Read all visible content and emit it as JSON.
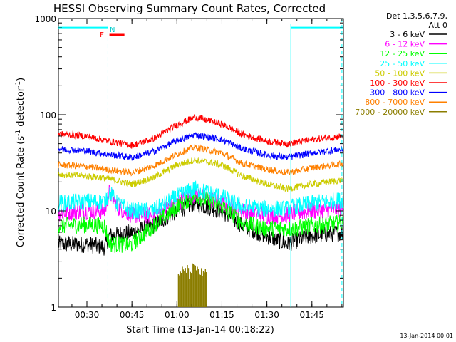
{
  "chart_data": {
    "type": "line",
    "title": "HESSI Observing Summary Count Rates, Corrected",
    "xlabel": "Start Time (13-Jan-14 00:18:22)",
    "ylabel": "Corrected Count Rate (s⁻¹ detector⁻¹)",
    "ylabel_main": "Corrected Count Rate (s",
    "ylabel_sup1": "-1",
    "ylabel_mid": " detector",
    "ylabel_sup2": "-1",
    "ylabel_end": ")",
    "y_scale": "log",
    "ylim": [
      1,
      1000
    ],
    "xlim": [
      "00:20:30",
      "01:55:30"
    ],
    "x_ticks": [
      "00:30",
      "00:45",
      "01:00",
      "01:15",
      "01:30",
      "01:45"
    ],
    "y_ticks": [
      "1",
      "10",
      "100",
      "1000"
    ],
    "legend_header": [
      "Det 1,3,5,6,7,9,",
      "Att 0"
    ],
    "legend_position": "right",
    "footer_date": "13-Jan-2014 00:01",
    "night_bar": {
      "segments": [
        [
          "00:20:30",
          "00:37:00"
        ],
        [
          "01:38:00",
          "01:55:30"
        ]
      ],
      "color": "#00ffff",
      "level": 800
    },
    "saa_dashed_lines": [
      "00:37:00",
      "01:55:00"
    ],
    "saa_solid_lines": [
      "01:38:00"
    ],
    "flag_labels": {
      "f": "F",
      "n": "N",
      "f_time": "00:35:00",
      "n_time": "00:38:00",
      "n_bar": [
        "00:37:30",
        "00:42:30"
      ]
    },
    "series": [
      {
        "name": "3 - 6 keV",
        "color": "#000000",
        "x": [
          "00:20:30",
          "00:30",
          "00:36",
          "00:37:30",
          "00:45",
          "00:52",
          "01:00",
          "01:06",
          "01:15",
          "01:22",
          "01:30",
          "01:37",
          "01:38:30",
          "01:45",
          "01:55:30"
        ],
        "values": [
          4.5,
          4.5,
          4.2,
          5.5,
          6,
          7,
          10,
          12,
          10,
          7,
          5.5,
          4.5,
          4.8,
          5.5,
          6
        ]
      },
      {
        "name": "6 - 12 keV",
        "color": "#ff00ff",
        "x": [
          "00:20:30",
          "00:30",
          "00:36",
          "00:37:30",
          "00:40",
          "00:45",
          "00:52",
          "01:00",
          "01:06",
          "01:15",
          "01:22",
          "01:30",
          "01:37",
          "01:38:30",
          "01:45",
          "01:55:30"
        ],
        "values": [
          9.5,
          10,
          10,
          16,
          11,
          9,
          9,
          12,
          15,
          12,
          10,
          9,
          9,
          9.5,
          10,
          10.5
        ]
      },
      {
        "name": "12 - 25 keV",
        "color": "#00ff00",
        "x": [
          "00:20:30",
          "00:30",
          "00:36",
          "00:37:30",
          "00:45",
          "00:52",
          "01:00",
          "01:06",
          "01:15",
          "01:22",
          "01:30",
          "01:37",
          "01:38:30",
          "01:45",
          "01:55:30"
        ],
        "values": [
          7,
          7.2,
          7,
          4.5,
          4.5,
          7,
          11,
          14.5,
          11,
          7.5,
          6.5,
          6.5,
          6.5,
          7,
          7.5
        ]
      },
      {
        "name": "25 - 50 keV",
        "color": "#00ffff",
        "x": [
          "00:20:30",
          "00:30",
          "00:36",
          "00:37:30",
          "00:40",
          "00:45",
          "00:52",
          "01:00",
          "01:06",
          "01:15",
          "01:22",
          "01:30",
          "01:37",
          "01:38:30",
          "01:45",
          "01:55:30"
        ],
        "values": [
          12,
          12.5,
          12.5,
          16,
          12,
          10,
          10,
          14,
          17,
          14,
          11,
          10.5,
          10.5,
          11,
          12,
          13
        ]
      },
      {
        "name": "50 - 100 keV",
        "color": "#cccc00",
        "x": [
          "00:20:30",
          "00:30",
          "00:36",
          "00:45",
          "00:52",
          "01:00",
          "01:06",
          "01:15",
          "01:22",
          "01:30",
          "01:37",
          "01:45",
          "01:55:30"
        ],
        "values": [
          24,
          23,
          22,
          19,
          22,
          30,
          34,
          30,
          23,
          19,
          17,
          19,
          21
        ]
      },
      {
        "name": "100 - 300 keV",
        "color": "#ff0000",
        "x": [
          "00:20:30",
          "00:30",
          "00:36",
          "00:45",
          "00:52",
          "01:00",
          "01:06",
          "01:15",
          "01:22",
          "01:30",
          "01:37",
          "01:45",
          "01:55:30"
        ],
        "values": [
          63,
          60,
          54,
          48,
          56,
          78,
          95,
          80,
          62,
          53,
          50,
          55,
          60
        ]
      },
      {
        "name": "300 - 800 keV",
        "color": "#0000ff",
        "x": [
          "00:20:30",
          "00:30",
          "00:36",
          "00:45",
          "00:52",
          "01:00",
          "01:06",
          "01:15",
          "01:22",
          "01:30",
          "01:37",
          "01:45",
          "01:55:30"
        ],
        "values": [
          44,
          42,
          39,
          36,
          41,
          54,
          62,
          55,
          44,
          38,
          36,
          40,
          44
        ]
      },
      {
        "name": "800 - 7000 keV",
        "color": "#ff8000",
        "x": [
          "00:20:30",
          "00:30",
          "00:36",
          "00:45",
          "00:52",
          "01:00",
          "01:06",
          "01:15",
          "01:22",
          "01:30",
          "01:37",
          "01:45",
          "01:55:30"
        ],
        "values": [
          30,
          29,
          27,
          25,
          29,
          39,
          46,
          40,
          31,
          27,
          25,
          28,
          31
        ]
      },
      {
        "name": "7000 - 20000 keV",
        "color": "#8b7d00",
        "x": [
          "01:00:30",
          "01:02",
          "01:03",
          "01:04",
          "01:05",
          "01:06",
          "01:07",
          "01:08",
          "01:09",
          "01:10"
        ],
        "values": [
          2,
          2.4,
          2.6,
          2.2,
          2.6,
          2.4,
          2.6,
          2.2,
          2.4,
          2
        ]
      }
    ]
  }
}
